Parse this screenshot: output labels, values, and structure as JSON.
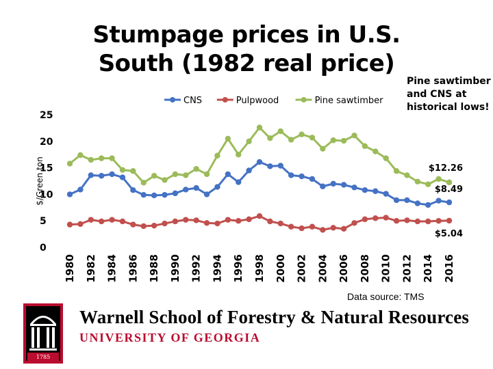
{
  "chart_data": {
    "type": "line",
    "title": "Stumpage prices in U.S. South (1982 real price)",
    "ylabel": "$/Green ton",
    "xlabel": "",
    "ylim": [
      0,
      25
    ],
    "yticks": [
      0,
      5,
      10,
      15,
      20,
      25
    ],
    "x": [
      1980,
      1981,
      1982,
      1983,
      1984,
      1985,
      1986,
      1987,
      1988,
      1989,
      1990,
      1991,
      1992,
      1993,
      1994,
      1995,
      1996,
      1997,
      1998,
      1999,
      2000,
      2001,
      2002,
      2003,
      2004,
      2005,
      2006,
      2007,
      2008,
      2009,
      2010,
      2011,
      2012,
      2013,
      2014,
      2015,
      2016
    ],
    "xticks": [
      "1980",
      "1982",
      "1984",
      "1986",
      "1988",
      "1990",
      "1992",
      "1994",
      "1996",
      "1998",
      "2000",
      "2002",
      "2004",
      "2006",
      "2008",
      "2010",
      "2012",
      "2014",
      "2016"
    ],
    "legend_position": "top",
    "series": [
      {
        "name": "CNS",
        "color": "#4472c4",
        "values": [
          10.0,
          10.9,
          13.6,
          13.5,
          13.8,
          13.2,
          10.8,
          9.9,
          9.8,
          9.9,
          10.2,
          10.9,
          11.2,
          10.0,
          11.4,
          13.8,
          12.3,
          14.5,
          16.1,
          15.3,
          15.4,
          13.6,
          13.4,
          12.9,
          11.5,
          12.0,
          11.8,
          11.3,
          10.8,
          10.6,
          10.1,
          8.9,
          8.9,
          8.3,
          8.0,
          8.8,
          8.49
        ]
      },
      {
        "name": "Pulpwood",
        "color": "#c0504d",
        "values": [
          4.3,
          4.4,
          5.2,
          4.9,
          5.2,
          4.9,
          4.3,
          4.0,
          4.1,
          4.5,
          4.9,
          5.2,
          5.1,
          4.6,
          4.5,
          5.2,
          5.0,
          5.3,
          5.9,
          4.9,
          4.5,
          3.9,
          3.6,
          3.9,
          3.3,
          3.7,
          3.5,
          4.6,
          5.3,
          5.5,
          5.6,
          5.0,
          5.1,
          4.9,
          4.9,
          5.0,
          5.04
        ]
      },
      {
        "name": "Pine sawtimber",
        "color": "#9bbb59",
        "values": [
          15.8,
          17.4,
          16.5,
          16.8,
          16.8,
          14.6,
          14.4,
          12.2,
          13.5,
          12.7,
          13.8,
          13.6,
          14.8,
          13.8,
          17.3,
          20.5,
          17.5,
          20.0,
          22.6,
          20.6,
          21.9,
          20.3,
          21.3,
          20.7,
          18.6,
          20.2,
          20.1,
          21.1,
          19.1,
          18.1,
          16.8,
          14.4,
          13.6,
          12.4,
          11.9,
          12.9,
          12.26
        ]
      }
    ],
    "end_labels": [
      "$12.26",
      "$8.49",
      "$5.04"
    ]
  },
  "callout": "Pine sawtimber and CNS at historical lows!",
  "source": "Data source: TMS",
  "logo": {
    "school": "Warnell School of Forestry & Natural Resources",
    "university": "UNIVERSITY OF GEORGIA",
    "seal_year": "1785",
    "brand_color": "#ba0c2f"
  }
}
